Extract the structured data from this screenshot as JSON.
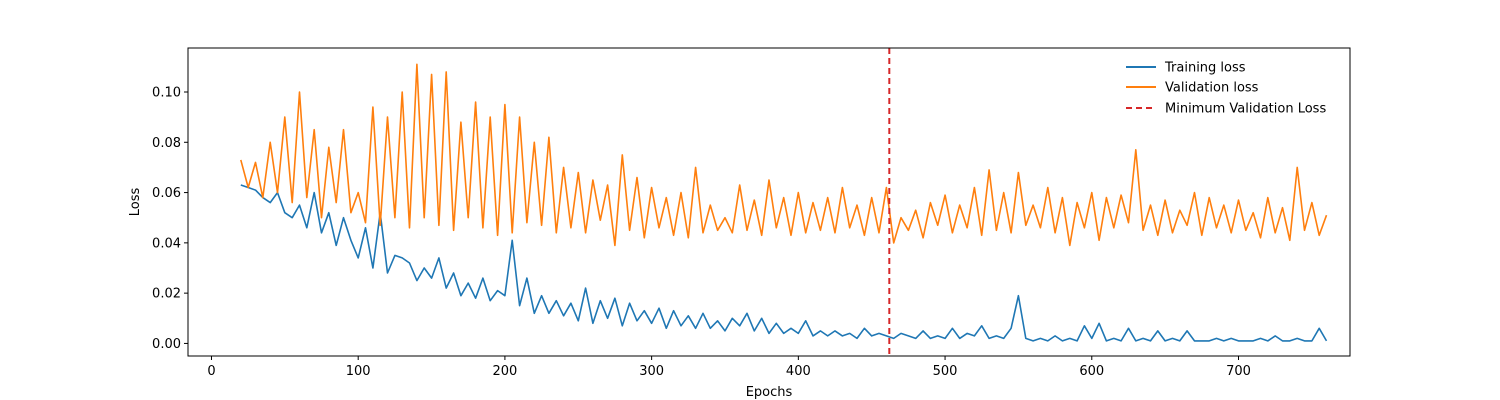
{
  "chart_data": {
    "type": "line",
    "title": "",
    "xlabel": "Epochs",
    "ylabel": "Loss",
    "xlim": [
      -16,
      776
    ],
    "ylim": [
      -0.005,
      0.1175
    ],
    "xticks": [
      0,
      100,
      200,
      300,
      400,
      500,
      600,
      700
    ],
    "yticks": [
      0.0,
      0.02,
      0.04,
      0.06,
      0.08,
      0.1
    ],
    "grid": false,
    "legend_position": "top-right",
    "vline": {
      "name": "Minimum Validation Loss",
      "x": 462,
      "color": "#d62728",
      "style": "dashed"
    },
    "series": [
      {
        "name": "Training loss",
        "color": "#1f77b4",
        "x": [
          20,
          25,
          30,
          35,
          40,
          45,
          50,
          55,
          60,
          65,
          70,
          75,
          80,
          85,
          90,
          95,
          100,
          105,
          110,
          115,
          120,
          125,
          130,
          135,
          140,
          145,
          150,
          155,
          160,
          165,
          170,
          175,
          180,
          185,
          190,
          195,
          200,
          205,
          210,
          215,
          220,
          225,
          230,
          235,
          240,
          245,
          250,
          255,
          260,
          265,
          270,
          275,
          280,
          285,
          290,
          295,
          300,
          305,
          310,
          315,
          320,
          325,
          330,
          335,
          340,
          345,
          350,
          355,
          360,
          365,
          370,
          375,
          380,
          385,
          390,
          395,
          400,
          405,
          410,
          415,
          420,
          425,
          430,
          435,
          440,
          445,
          450,
          455,
          460,
          465,
          470,
          475,
          480,
          485,
          490,
          495,
          500,
          505,
          510,
          515,
          520,
          525,
          530,
          535,
          540,
          545,
          550,
          555,
          560,
          565,
          570,
          575,
          580,
          585,
          590,
          595,
          600,
          605,
          610,
          615,
          620,
          625,
          630,
          635,
          640,
          645,
          650,
          655,
          660,
          665,
          670,
          675,
          680,
          685,
          690,
          695,
          700,
          705,
          710,
          715,
          720,
          725,
          730,
          735,
          740,
          745,
          750,
          755,
          760
        ],
        "values": [
          0.063,
          0.062,
          0.061,
          0.058,
          0.056,
          0.06,
          0.052,
          0.05,
          0.055,
          0.046,
          0.06,
          0.044,
          0.052,
          0.039,
          0.05,
          0.041,
          0.034,
          0.046,
          0.03,
          0.052,
          0.028,
          0.035,
          0.034,
          0.032,
          0.025,
          0.03,
          0.026,
          0.034,
          0.022,
          0.028,
          0.019,
          0.024,
          0.018,
          0.026,
          0.017,
          0.021,
          0.019,
          0.041,
          0.015,
          0.026,
          0.012,
          0.019,
          0.012,
          0.017,
          0.011,
          0.016,
          0.009,
          0.022,
          0.008,
          0.017,
          0.01,
          0.018,
          0.007,
          0.016,
          0.009,
          0.013,
          0.008,
          0.014,
          0.006,
          0.013,
          0.007,
          0.011,
          0.006,
          0.012,
          0.006,
          0.009,
          0.005,
          0.01,
          0.007,
          0.012,
          0.005,
          0.01,
          0.004,
          0.008,
          0.004,
          0.006,
          0.004,
          0.009,
          0.003,
          0.005,
          0.003,
          0.005,
          0.003,
          0.004,
          0.002,
          0.006,
          0.003,
          0.004,
          0.003,
          0.002,
          0.004,
          0.003,
          0.002,
          0.005,
          0.002,
          0.003,
          0.002,
          0.006,
          0.002,
          0.004,
          0.003,
          0.007,
          0.002,
          0.003,
          0.002,
          0.006,
          0.019,
          0.002,
          0.001,
          0.002,
          0.001,
          0.003,
          0.001,
          0.002,
          0.001,
          0.007,
          0.002,
          0.008,
          0.001,
          0.002,
          0.001,
          0.006,
          0.001,
          0.002,
          0.001,
          0.005,
          0.001,
          0.002,
          0.001,
          0.005,
          0.001,
          0.001,
          0.001,
          0.002,
          0.001,
          0.002,
          0.001,
          0.001,
          0.001,
          0.002,
          0.001,
          0.003,
          0.001,
          0.001,
          0.002,
          0.001,
          0.001,
          0.006,
          0.001
        ]
      },
      {
        "name": "Validation loss",
        "color": "#ff7f0e",
        "x": [
          20,
          25,
          30,
          35,
          40,
          45,
          50,
          55,
          60,
          65,
          70,
          75,
          80,
          85,
          90,
          95,
          100,
          105,
          110,
          115,
          120,
          125,
          130,
          135,
          140,
          145,
          150,
          155,
          160,
          165,
          170,
          175,
          180,
          185,
          190,
          195,
          200,
          205,
          210,
          215,
          220,
          225,
          230,
          235,
          240,
          245,
          250,
          255,
          260,
          265,
          270,
          275,
          280,
          285,
          290,
          295,
          300,
          305,
          310,
          315,
          320,
          325,
          330,
          335,
          340,
          345,
          350,
          355,
          360,
          365,
          370,
          375,
          380,
          385,
          390,
          395,
          400,
          405,
          410,
          415,
          420,
          425,
          430,
          435,
          440,
          445,
          450,
          455,
          460,
          465,
          470,
          475,
          480,
          485,
          490,
          495,
          500,
          505,
          510,
          515,
          520,
          525,
          530,
          535,
          540,
          545,
          550,
          555,
          560,
          565,
          570,
          575,
          580,
          585,
          590,
          595,
          600,
          605,
          610,
          615,
          620,
          625,
          630,
          635,
          640,
          645,
          650,
          655,
          660,
          665,
          670,
          675,
          680,
          685,
          690,
          695,
          700,
          705,
          710,
          715,
          720,
          725,
          730,
          735,
          740,
          745,
          750,
          755,
          760
        ],
        "values": [
          0.073,
          0.062,
          0.072,
          0.058,
          0.08,
          0.06,
          0.09,
          0.056,
          0.1,
          0.058,
          0.085,
          0.05,
          0.078,
          0.056,
          0.085,
          0.052,
          0.06,
          0.048,
          0.094,
          0.047,
          0.09,
          0.05,
          0.1,
          0.046,
          0.111,
          0.05,
          0.107,
          0.047,
          0.108,
          0.045,
          0.088,
          0.05,
          0.096,
          0.046,
          0.09,
          0.043,
          0.095,
          0.044,
          0.09,
          0.048,
          0.08,
          0.047,
          0.082,
          0.044,
          0.07,
          0.046,
          0.068,
          0.044,
          0.065,
          0.049,
          0.063,
          0.039,
          0.075,
          0.045,
          0.066,
          0.042,
          0.062,
          0.046,
          0.058,
          0.043,
          0.06,
          0.042,
          0.07,
          0.044,
          0.055,
          0.045,
          0.05,
          0.044,
          0.063,
          0.045,
          0.057,
          0.043,
          0.065,
          0.046,
          0.058,
          0.043,
          0.06,
          0.044,
          0.056,
          0.045,
          0.058,
          0.044,
          0.062,
          0.046,
          0.055,
          0.043,
          0.058,
          0.044,
          0.062,
          0.04,
          0.05,
          0.045,
          0.053,
          0.042,
          0.056,
          0.047,
          0.059,
          0.044,
          0.055,
          0.046,
          0.062,
          0.043,
          0.069,
          0.045,
          0.06,
          0.044,
          0.068,
          0.047,
          0.055,
          0.046,
          0.062,
          0.044,
          0.058,
          0.039,
          0.056,
          0.046,
          0.06,
          0.041,
          0.058,
          0.046,
          0.059,
          0.048,
          0.077,
          0.045,
          0.055,
          0.043,
          0.057,
          0.044,
          0.053,
          0.047,
          0.06,
          0.043,
          0.058,
          0.046,
          0.055,
          0.044,
          0.057,
          0.045,
          0.052,
          0.042,
          0.058,
          0.044,
          0.054,
          0.041,
          0.07,
          0.045,
          0.056,
          0.043,
          0.051
        ]
      }
    ]
  }
}
